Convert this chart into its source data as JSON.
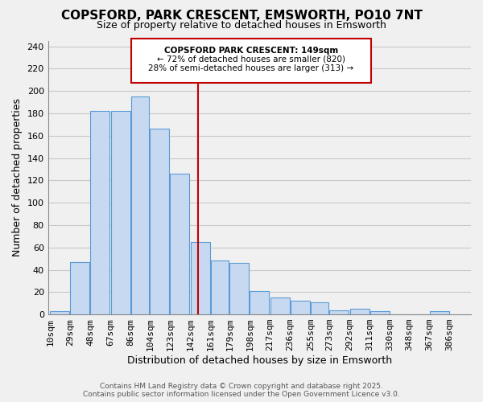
{
  "title": "COPSFORD, PARK CRESCENT, EMSWORTH, PO10 7NT",
  "subtitle": "Size of property relative to detached houses in Emsworth",
  "xlabel": "Distribution of detached houses by size in Emsworth",
  "ylabel": "Number of detached properties",
  "bar_color": "#c6d9f0",
  "bar_edge_color": "#5b9bd5",
  "grid_color": "#c8c8c8",
  "background_color": "#f0f0f0",
  "annotation_box_edge": "#c00000",
  "vline_color": "#c00000",
  "bins": [
    10,
    29,
    48,
    67,
    86,
    104,
    123,
    142,
    161,
    179,
    198,
    217,
    236,
    255,
    273,
    292,
    311,
    330,
    348,
    367,
    386
  ],
  "counts": [
    3,
    47,
    182,
    182,
    195,
    166,
    126,
    65,
    48,
    46,
    21,
    15,
    12,
    11,
    4,
    5,
    3,
    0,
    0,
    3
  ],
  "vline_x": 149,
  "annotation_title": "COPSFORD PARK CRESCENT: 149sqm",
  "annotation_line1": "← 72% of detached houses are smaller (820)",
  "annotation_line2": "28% of semi-detached houses are larger (313) →",
  "ylim": [
    0,
    245
  ],
  "yticks": [
    0,
    20,
    40,
    60,
    80,
    100,
    120,
    140,
    160,
    180,
    200,
    220,
    240
  ],
  "footer1": "Contains HM Land Registry data © Crown copyright and database right 2025.",
  "footer2": "Contains public sector information licensed under the Open Government Licence v3.0."
}
